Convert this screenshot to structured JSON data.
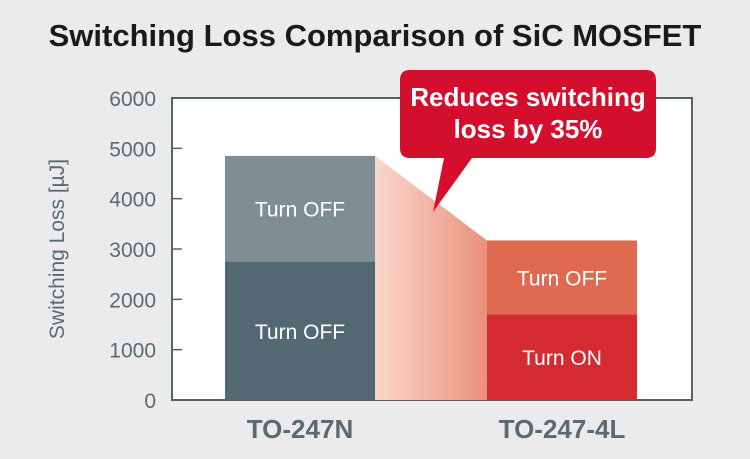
{
  "chart_data": {
    "type": "bar",
    "stacked": true,
    "title": "Switching Loss Comparison of SiC MOSFET",
    "ylabel": "Switching Loss [µJ]",
    "xlabel": "",
    "ylim": [
      0,
      6000
    ],
    "yticks": [
      0,
      1000,
      2000,
      3000,
      4000,
      5000,
      6000
    ],
    "grid": false,
    "categories": [
      "TO-247N",
      "TO-247-4L"
    ],
    "bars": [
      {
        "category": "TO-247N",
        "segments": [
          {
            "label": "Turn OFF",
            "value": 2750,
            "color": "#546873"
          },
          {
            "label": "Turn OFF",
            "value": 2100,
            "color": "#7f8d94"
          }
        ]
      },
      {
        "category": "TO-247-4L",
        "segments": [
          {
            "label": "Turn ON",
            "value": 1700,
            "color": "#d42a30"
          },
          {
            "label": "Turn OFF",
            "value": 1470,
            "color": "#e06a50"
          }
        ]
      }
    ],
    "annotation": {
      "lines": [
        "Reduces switching",
        "loss by 35%"
      ],
      "color": "#d40f2d"
    }
  },
  "colors": {
    "background": "#ebebeb",
    "plot_background": "#ffffff",
    "text_dark": "#1a1a1a",
    "axis_text": "#5a6a74",
    "axis_line": "#55636b",
    "transition_start": "#f9d8cc",
    "transition_end": "#eb8f7c"
  }
}
